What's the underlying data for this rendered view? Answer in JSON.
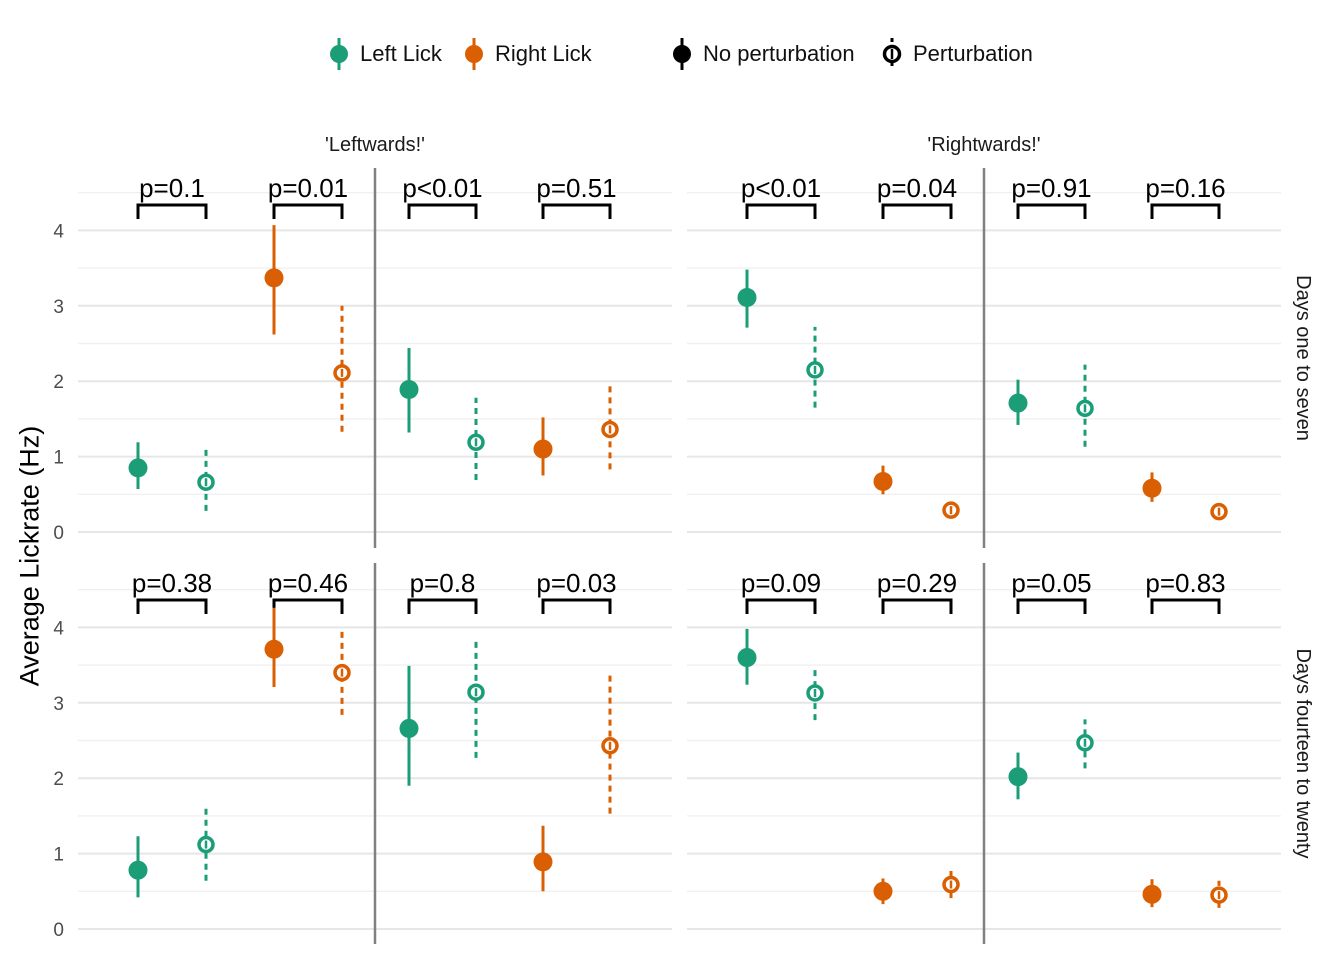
{
  "legend": {
    "color_items": [
      {
        "label": "Left Lick",
        "color": "#1b9e77"
      },
      {
        "label": "Right Lick",
        "color": "#d95f02"
      }
    ],
    "style_items": [
      {
        "label": "No perturbation",
        "style": "solid"
      },
      {
        "label": "Perturbation",
        "style": "dashed"
      }
    ]
  },
  "chart_data": {
    "type": "scatter",
    "subtype": "pointrange",
    "ylabel": "Average Lickrate (Hz)",
    "ylim": [
      0,
      4.4
    ],
    "y_ticks": [
      0,
      1,
      2,
      3,
      4
    ],
    "grid": true,
    "legend_position": "top",
    "columns": [
      "'Leftwards!'",
      "'Rightwards!'"
    ],
    "rows": [
      "Days one to seven",
      "Days fourteen to twenty"
    ],
    "panels": [
      {
        "column": "'Leftwards!'",
        "row": "Days one to seven",
        "groups": [
          {
            "lick": "Left Lick",
            "points": [
              {
                "perturbation": false,
                "y": 0.85,
                "lo": 0.57,
                "hi": 1.19
              },
              {
                "perturbation": true,
                "y": 0.66,
                "lo": 0.28,
                "hi": 1.09
              }
            ],
            "p": "p=0.1"
          },
          {
            "lick": "Right Lick",
            "points": [
              {
                "perturbation": false,
                "y": 3.37,
                "lo": 2.62,
                "hi": 4.07
              },
              {
                "perturbation": true,
                "y": 2.11,
                "lo": 1.33,
                "hi": 3.0
              }
            ],
            "p": "p=0.01"
          },
          {
            "lick": "Left Lick",
            "points": [
              {
                "perturbation": false,
                "y": 1.89,
                "lo": 1.32,
                "hi": 2.44
              },
              {
                "perturbation": true,
                "y": 1.19,
                "lo": 0.69,
                "hi": 1.78
              }
            ],
            "p": "p<0.01"
          },
          {
            "lick": "Right Lick",
            "points": [
              {
                "perturbation": false,
                "y": 1.1,
                "lo": 0.75,
                "hi": 1.52
              },
              {
                "perturbation": true,
                "y": 1.36,
                "lo": 0.83,
                "hi": 1.96
              }
            ],
            "p": "p=0.51"
          }
        ]
      },
      {
        "column": "'Rightwards!'",
        "row": "Days one to seven",
        "groups": [
          {
            "lick": "Left Lick",
            "points": [
              {
                "perturbation": false,
                "y": 3.11,
                "lo": 2.71,
                "hi": 3.48
              },
              {
                "perturbation": true,
                "y": 2.15,
                "lo": 1.65,
                "hi": 2.72
              }
            ],
            "p": "p<0.01"
          },
          {
            "lick": "Right Lick",
            "points": [
              {
                "perturbation": false,
                "y": 0.67,
                "lo": 0.5,
                "hi": 0.88
              },
              {
                "perturbation": true,
                "y": 0.29,
                "lo": 0.18,
                "hi": 0.38
              }
            ],
            "p": "p=0.04"
          },
          {
            "lick": "Left Lick",
            "points": [
              {
                "perturbation": false,
                "y": 1.71,
                "lo": 1.42,
                "hi": 2.02
              },
              {
                "perturbation": true,
                "y": 1.64,
                "lo": 1.13,
                "hi": 2.22
              }
            ],
            "p": "p=0.91"
          },
          {
            "lick": "Right Lick",
            "points": [
              {
                "perturbation": false,
                "y": 0.58,
                "lo": 0.4,
                "hi": 0.79
              },
              {
                "perturbation": true,
                "y": 0.27,
                "lo": 0.17,
                "hi": 0.36
              }
            ],
            "p": "p=0.16"
          }
        ]
      },
      {
        "column": "'Leftwards!'",
        "row": "Days fourteen to twenty",
        "groups": [
          {
            "lick": "Left Lick",
            "points": [
              {
                "perturbation": false,
                "y": 0.78,
                "lo": 0.42,
                "hi": 1.23
              },
              {
                "perturbation": true,
                "y": 1.12,
                "lo": 0.64,
                "hi": 1.62
              }
            ],
            "p": "p=0.38"
          },
          {
            "lick": "Right Lick",
            "points": [
              {
                "perturbation": false,
                "y": 3.71,
                "lo": 3.21,
                "hi": 4.26
              },
              {
                "perturbation": true,
                "y": 3.4,
                "lo": 2.84,
                "hi": 3.98
              }
            ],
            "p": "p=0.46"
          },
          {
            "lick": "Left Lick",
            "points": [
              {
                "perturbation": false,
                "y": 2.66,
                "lo": 1.9,
                "hi": 3.49
              },
              {
                "perturbation": true,
                "y": 3.14,
                "lo": 2.27,
                "hi": 3.86
              }
            ],
            "p": "p=0.8"
          },
          {
            "lick": "Right Lick",
            "points": [
              {
                "perturbation": false,
                "y": 0.89,
                "lo": 0.5,
                "hi": 1.37
              },
              {
                "perturbation": true,
                "y": 2.43,
                "lo": 1.53,
                "hi": 3.4
              }
            ],
            "p": "p=0.03"
          }
        ]
      },
      {
        "column": "'Rightwards!'",
        "row": "Days fourteen to twenty",
        "groups": [
          {
            "lick": "Left Lick",
            "points": [
              {
                "perturbation": false,
                "y": 3.6,
                "lo": 3.24,
                "hi": 3.98
              },
              {
                "perturbation": true,
                "y": 3.13,
                "lo": 2.77,
                "hi": 3.44
              }
            ],
            "p": "p=0.09"
          },
          {
            "lick": "Right Lick",
            "points": [
              {
                "perturbation": false,
                "y": 0.5,
                "lo": 0.33,
                "hi": 0.67
              },
              {
                "perturbation": true,
                "y": 0.59,
                "lo": 0.41,
                "hi": 0.77
              }
            ],
            "p": "p=0.29"
          },
          {
            "lick": "Left Lick",
            "points": [
              {
                "perturbation": false,
                "y": 2.02,
                "lo": 1.72,
                "hi": 2.34
              },
              {
                "perturbation": true,
                "y": 2.47,
                "lo": 2.13,
                "hi": 2.78
              }
            ],
            "p": "p=0.05"
          },
          {
            "lick": "Right Lick",
            "points": [
              {
                "perturbation": false,
                "y": 0.46,
                "lo": 0.29,
                "hi": 0.66
              },
              {
                "perturbation": true,
                "y": 0.45,
                "lo": 0.28,
                "hi": 0.64
              }
            ],
            "p": "p=0.83"
          }
        ]
      }
    ]
  }
}
